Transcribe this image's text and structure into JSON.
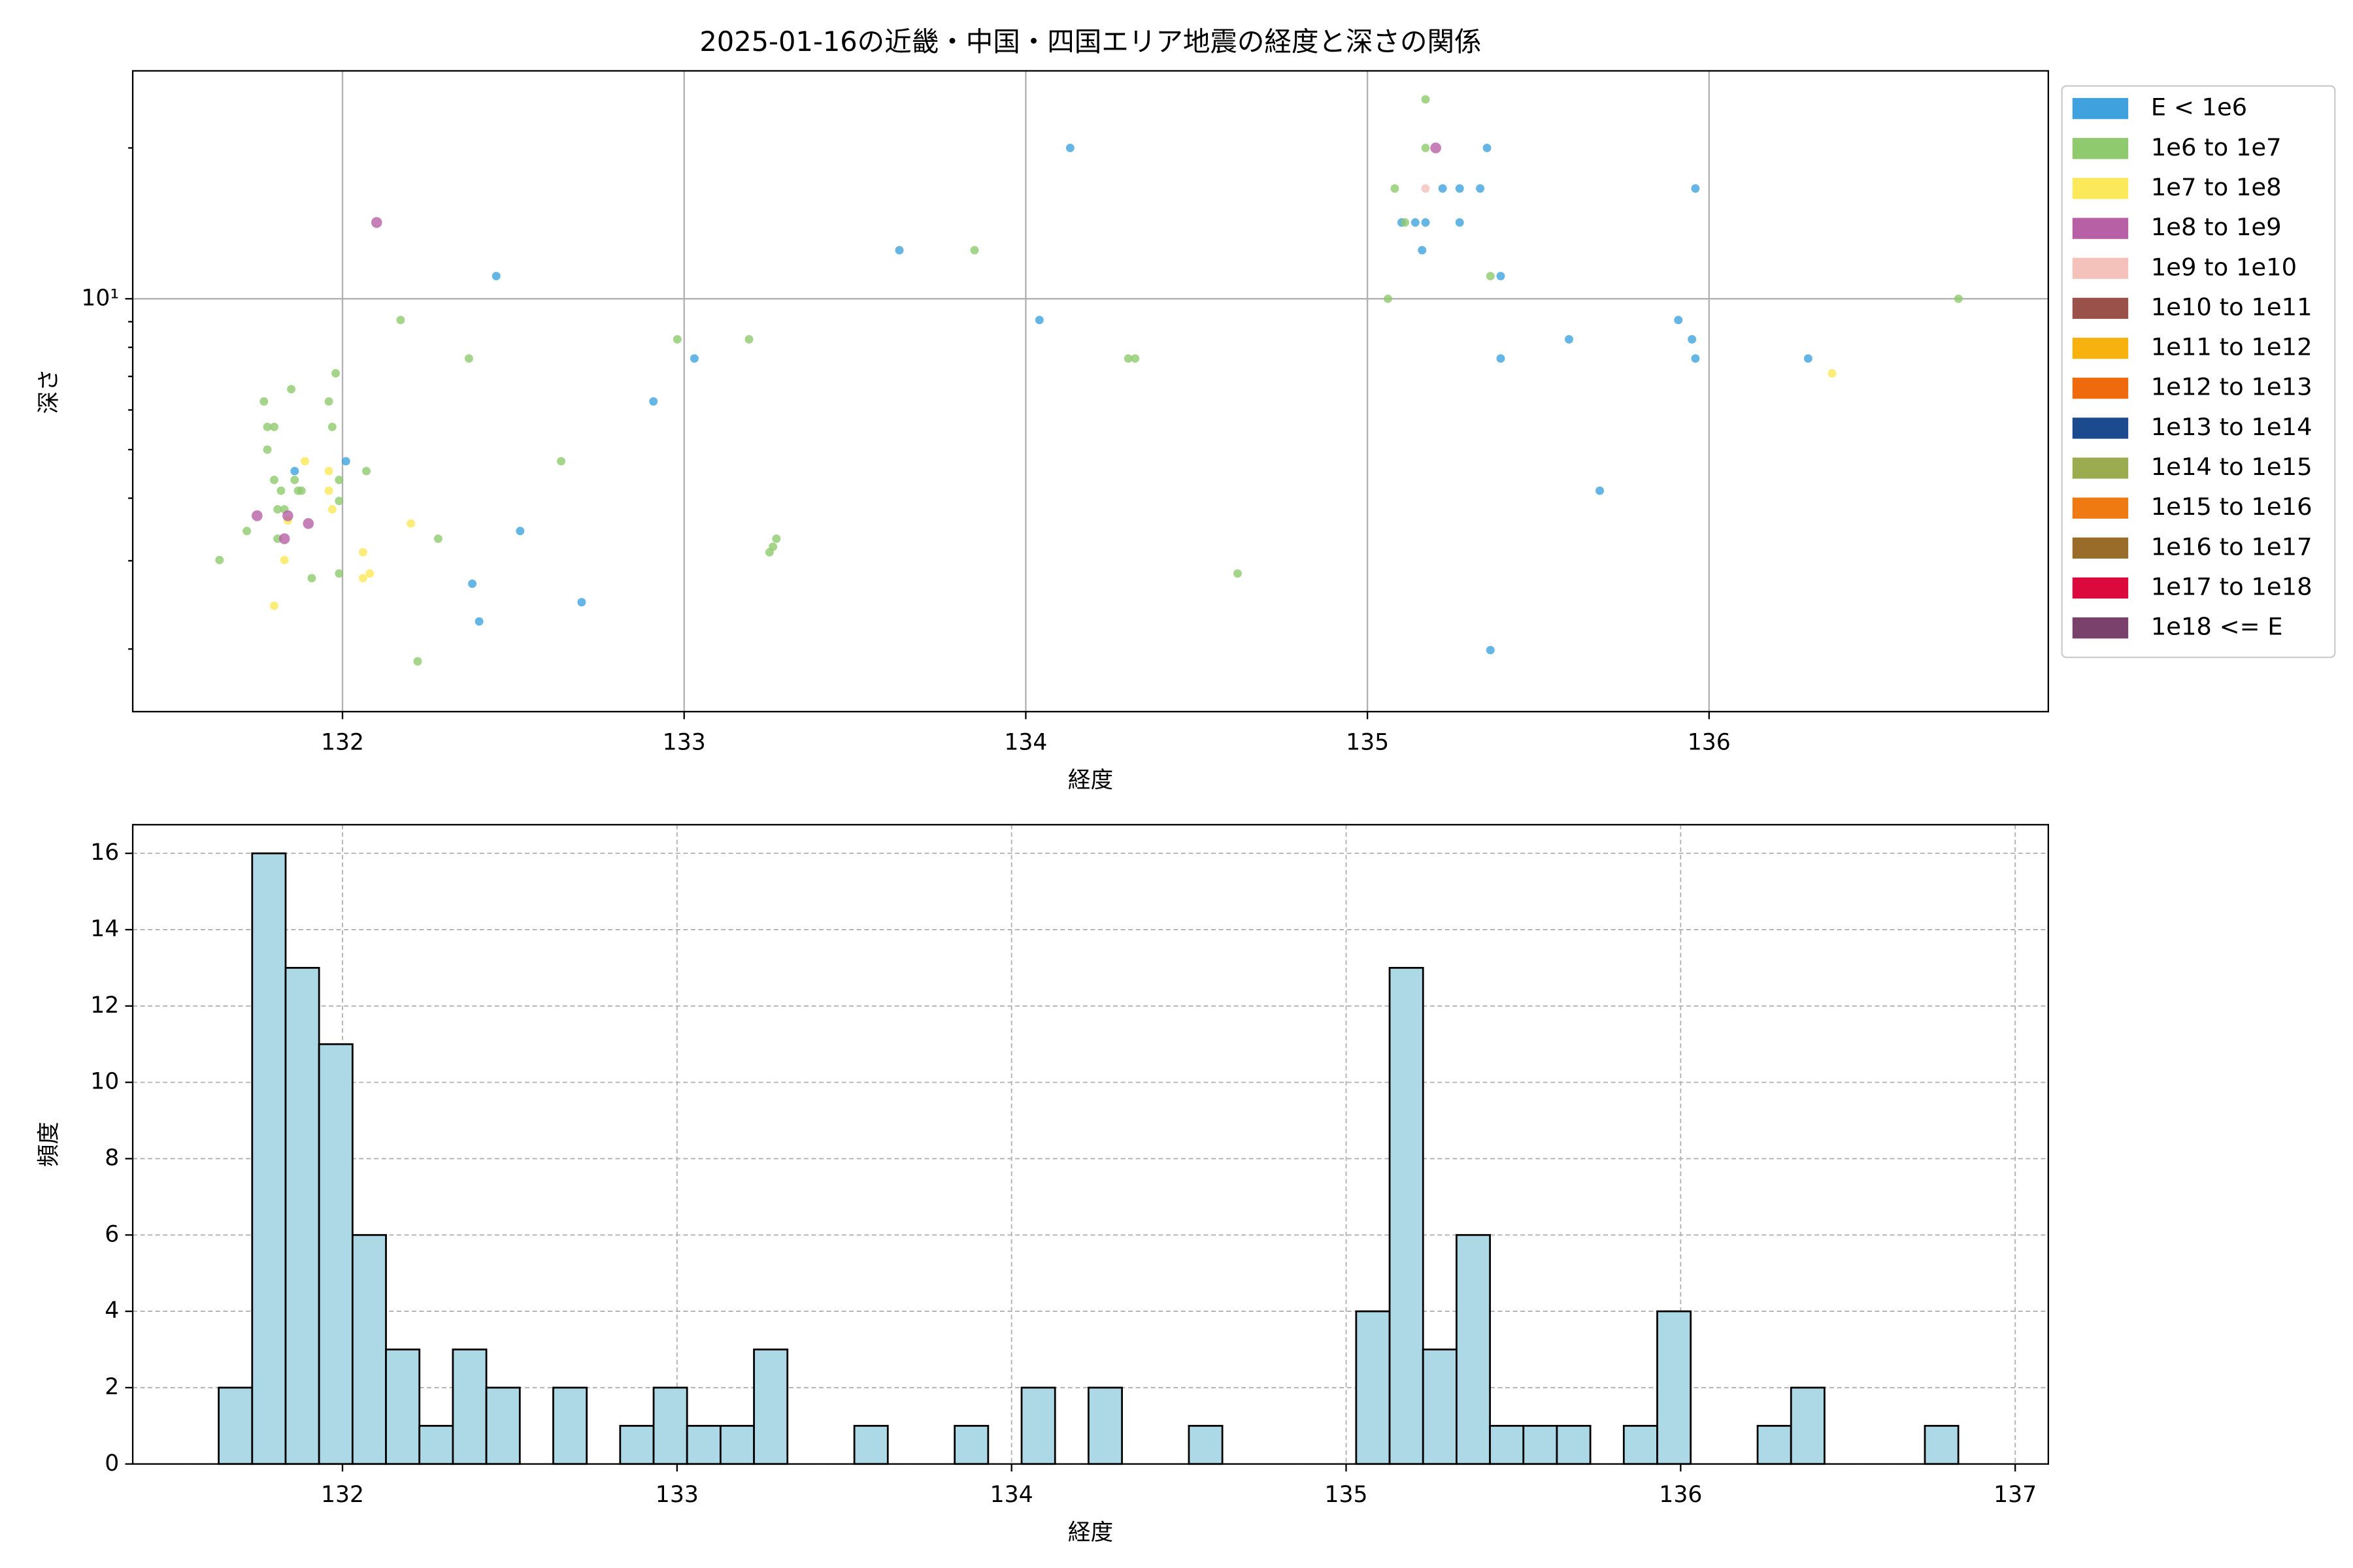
{
  "chart_data": [
    {
      "type": "scatter",
      "title": "2025-01-16の近畿・中国・四国エリア地震の経度と深さの関係",
      "x_label": "経度",
      "y_label": "深さ",
      "xlim": [
        131.386,
        136.993
      ],
      "xticks": [
        132,
        133,
        134,
        135,
        136
      ],
      "ylim": [
        1.5,
        28.5
      ],
      "ylog": true,
      "yticks": [
        {
          "value": 10,
          "label": "10¹"
        }
      ],
      "yminorticks": [
        2,
        3,
        4,
        5,
        6,
        7,
        8,
        9,
        20
      ],
      "grid": true,
      "grid_style": "solid",
      "legend": "outside right",
      "series": [
        {
          "name": "E < 1e6",
          "color": "#3fa2de",
          "x": [
            131.86,
            132.01,
            132.45,
            132.52,
            132.38,
            132.4,
            132.7,
            132.91,
            133.03,
            133.63,
            134.13,
            134.04,
            135.1,
            135.14,
            135.17,
            135.16,
            135.22,
            135.27,
            135.33,
            135.27,
            135.35,
            135.39,
            135.39,
            135.36,
            135.59,
            135.68,
            135.91,
            135.95,
            135.96,
            135.96,
            136.29
          ],
          "values": [
            4.53,
            4.74,
            11.1,
            3.44,
            2.7,
            2.27,
            2.48,
            6.24,
            7.6,
            12.5,
            20,
            9.07,
            14.2,
            14.2,
            14.2,
            12.5,
            16.6,
            16.6,
            16.6,
            14.2,
            20,
            11.1,
            7.6,
            1.99,
            8.3,
            4.14,
            9.07,
            8.3,
            7.6,
            16.6,
            7.6
          ]
        },
        {
          "name": "1e6 to 1e7",
          "color": "#8fcb6e",
          "x": [
            131.64,
            131.72,
            131.77,
            131.78,
            131.8,
            131.78,
            131.8,
            131.82,
            131.81,
            131.83,
            131.85,
            131.86,
            131.87,
            131.88,
            131.81,
            131.91,
            131.98,
            131.97,
            131.99,
            131.99,
            131.99,
            131.96,
            132.07,
            132.17,
            132.22,
            132.28,
            132.37,
            132.64,
            132.98,
            133.19,
            133.25,
            133.26,
            133.27,
            133.85,
            134.3,
            134.32,
            134.62,
            135.06,
            135.08,
            135.11,
            135.17,
            135.17,
            135.36,
            136.73
          ],
          "values": [
            3.01,
            3.44,
            6.24,
            5.55,
            5.55,
            5.0,
            4.35,
            4.14,
            3.8,
            3.8,
            6.6,
            4.35,
            4.14,
            4.14,
            3.32,
            2.77,
            7.1,
            5.55,
            4.35,
            3.95,
            2.83,
            6.24,
            4.53,
            9.07,
            1.89,
            3.32,
            7.6,
            4.74,
            8.3,
            8.3,
            3.12,
            3.2,
            3.32,
            12.5,
            7.6,
            7.6,
            2.83,
            10,
            16.6,
            14.2,
            25,
            20,
            11.1,
            10
          ]
        },
        {
          "name": "1e7 to 1e8",
          "color": "#fbe95a",
          "x": [
            131.8,
            131.83,
            131.84,
            131.89,
            131.96,
            131.96,
            131.97,
            132.06,
            132.06,
            132.08,
            132.2,
            136.36
          ],
          "values": [
            2.44,
            3.01,
            3.61,
            4.74,
            4.53,
            4.14,
            3.8,
            3.12,
            2.77,
            2.83,
            3.56,
            7.1
          ]
        },
        {
          "name": "1e8 to 1e9",
          "color": "#b760a6",
          "x": [
            132.1,
            131.75,
            131.84,
            131.83,
            131.9,
            135.2
          ],
          "values": [
            14.2,
            3.69,
            3.69,
            3.32,
            3.56,
            20
          ]
        },
        {
          "name": "1e9 to 1e10",
          "color": "#f4c1bb",
          "x": [
            135.17
          ],
          "values": [
            16.6
          ]
        },
        {
          "name": "1e10 to 1e11",
          "color": "#9a5149",
          "x": [],
          "values": []
        },
        {
          "name": "1e11 to 1e12",
          "color": "#f8b20f",
          "x": [],
          "values": []
        },
        {
          "name": "1e12 to 1e13",
          "color": "#ee6a0c",
          "x": [],
          "values": []
        },
        {
          "name": "1e13 to 1e14",
          "color": "#1c4a8f",
          "x": [],
          "values": []
        },
        {
          "name": "1e14 to 1e15",
          "color": "#9aac4f",
          "x": [],
          "values": []
        },
        {
          "name": "1e15 to 1e16",
          "color": "#ee7a11",
          "x": [],
          "values": []
        },
        {
          "name": "1e16 to 1e17",
          "color": "#9a6c2a",
          "x": [],
          "values": []
        },
        {
          "name": "1e17 to 1e18",
          "color": "#dc0a3c",
          "x": [],
          "values": []
        },
        {
          "name": "1e18 <= E",
          "color": "#7a416c",
          "x": [],
          "values": []
        }
      ]
    },
    {
      "type": "histogram",
      "x_label": "経度",
      "y_label": "頻度",
      "xlim": [
        131.373,
        137.099
      ],
      "xticks": [
        132,
        133,
        134,
        135,
        136,
        137
      ],
      "ylim": [
        0,
        16.75
      ],
      "yticks": [
        0,
        2,
        4,
        6,
        8,
        10,
        12,
        14,
        16
      ],
      "grid": true,
      "grid_style": "dashed",
      "color": "#add8e6",
      "edge_color": "#000000",
      "bins": [
        131.63,
        131.73,
        131.83,
        131.93,
        132.03,
        132.13,
        132.23,
        132.33,
        132.43,
        132.53,
        132.63,
        132.73,
        132.83,
        132.93,
        133.03,
        133.13,
        133.23,
        133.33,
        133.43,
        133.53,
        133.63,
        133.73,
        133.83,
        133.93,
        134.03,
        134.13,
        134.23,
        134.33,
        134.43,
        134.53,
        134.63,
        134.73,
        134.83,
        134.93,
        135.03,
        135.13,
        135.23,
        135.33,
        135.43,
        135.53,
        135.63,
        135.73,
        135.83,
        135.93,
        136.03,
        136.13,
        136.23,
        136.33,
        136.43,
        136.53,
        136.63,
        136.73,
        136.83
      ],
      "values": [
        2,
        16,
        13,
        11,
        6,
        3,
        1,
        3,
        2,
        0,
        2,
        0,
        1,
        2,
        1,
        1,
        3,
        0,
        0,
        1,
        0,
        0,
        1,
        0,
        2,
        0,
        2,
        0,
        0,
        1,
        0,
        0,
        0,
        0,
        4,
        13,
        3,
        6,
        1,
        1,
        1,
        0,
        1,
        4,
        0,
        0,
        1,
        2,
        0,
        0,
        0,
        1
      ]
    }
  ]
}
